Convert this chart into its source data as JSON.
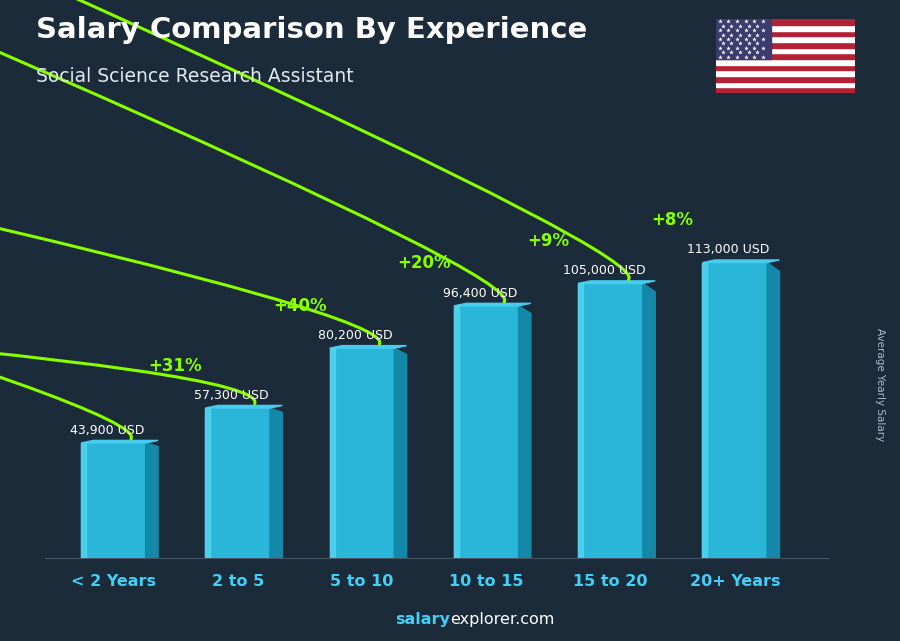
{
  "title": "Salary Comparison By Experience",
  "subtitle": "Social Science Research Assistant",
  "categories": [
    "< 2 Years",
    "2 to 5",
    "5 to 10",
    "10 to 15",
    "15 to 20",
    "20+ Years"
  ],
  "values": [
    43900,
    57300,
    80200,
    96400,
    105000,
    113000
  ],
  "salary_labels": [
    "43,900 USD",
    "57,300 USD",
    "80,200 USD",
    "96,400 USD",
    "105,000 USD",
    "113,000 USD"
  ],
  "pct_labels": [
    "+31%",
    "+40%",
    "+20%",
    "+9%",
    "+8%"
  ],
  "bar_color_main": "#29b6d8",
  "bar_color_left": "#55d4f0",
  "bar_color_right": "#1488a8",
  "bar_color_top": "#45ccee",
  "bg_color": "#1c2b3a",
  "title_color": "#ffffff",
  "subtitle_color": "#e0e8f0",
  "salary_label_color": "#ffffff",
  "pct_color": "#88ff00",
  "xlabel_color": "#40d0f8",
  "footer_salary_color": "#40d0f8",
  "footer_explorer_color": "#ffffff",
  "ylabel_text": "Average Yearly Salary",
  "footer_bold": "salary",
  "footer_normal": "explorer.com",
  "ylim": [
    0,
    135000
  ]
}
